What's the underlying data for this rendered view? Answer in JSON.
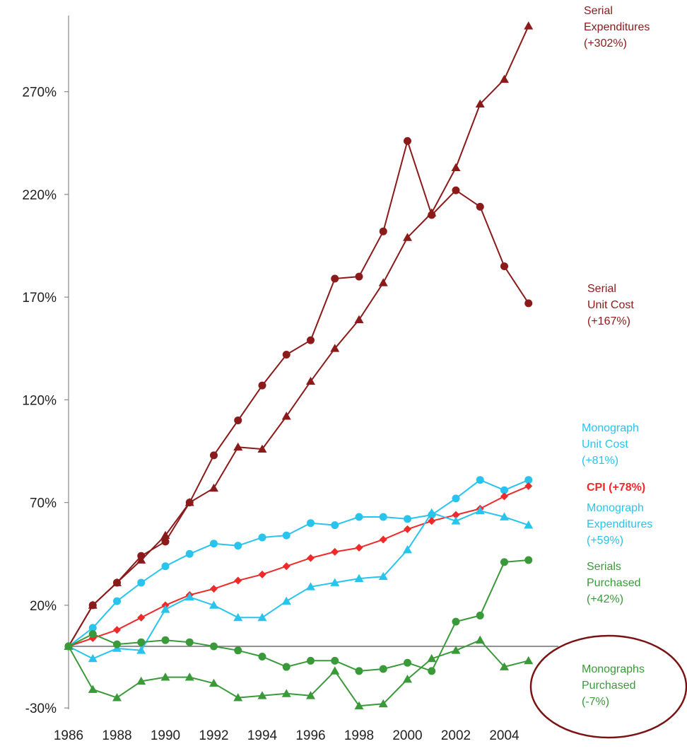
{
  "chart_data": {
    "type": "line",
    "title": "",
    "xlabel": "",
    "ylabel": "",
    "x": [
      1986,
      1987,
      1988,
      1989,
      1990,
      1991,
      1992,
      1993,
      1994,
      1995,
      1996,
      1997,
      1998,
      1999,
      2000,
      2001,
      2002,
      2003,
      2004,
      2005
    ],
    "xlim": [
      1986,
      2005.5
    ],
    "ylim": [
      -30,
      300
    ],
    "x_ticks": [
      "1986",
      "1988",
      "1990",
      "1992",
      "1994",
      "1996",
      "1998",
      "2000",
      "2002",
      "2004"
    ],
    "y_ticks": [
      "270%",
      "220%",
      "170%",
      "120%",
      "70%",
      "20%",
      "-30%"
    ],
    "y_tick_values": [
      270,
      220,
      170,
      120,
      70,
      20,
      -30
    ],
    "grid": false,
    "series": [
      {
        "label": [
          "Serial",
          "Expenditures",
          "(+302%)"
        ],
        "color": "#8b1a1a",
        "marker": "triangle",
        "values": [
          0,
          20,
          31,
          42,
          54,
          70,
          77,
          97,
          96,
          112,
          129,
          145,
          159,
          177,
          199,
          211,
          233,
          264,
          276,
          302
        ]
      },
      {
        "label": [
          "Serial",
          "Unit Cost",
          "(+167%)"
        ],
        "color": "#8b1a1a",
        "marker": "circle",
        "values": [
          0,
          20,
          31,
          44,
          51,
          70,
          93,
          110,
          127,
          142,
          149,
          179,
          180,
          202,
          246,
          210,
          222,
          214,
          185,
          167
        ]
      },
      {
        "label": [
          "Monograph",
          "Unit Cost",
          "(+81%)"
        ],
        "color": "#29c4ee",
        "marker": "circle",
        "values": [
          0,
          9,
          22,
          31,
          39,
          45,
          50,
          49,
          53,
          54,
          60,
          59,
          63,
          63,
          62,
          64,
          72,
          81,
          76,
          81
        ]
      },
      {
        "label": [
          "CPI (+78%)"
        ],
        "color": "#ee2a2a",
        "marker": "diamond",
        "bold": true,
        "values": [
          0,
          4,
          8,
          14,
          20,
          25,
          28,
          32,
          35,
          39,
          43,
          46,
          48,
          52,
          57,
          61,
          64,
          67,
          73,
          78
        ]
      },
      {
        "label": [
          "Monograph",
          "Expenditures",
          "(+59%)"
        ],
        "color": "#29c4ee",
        "marker": "triangle",
        "values": [
          0,
          -6,
          -1,
          -2,
          18,
          24,
          20,
          14,
          14,
          22,
          29,
          31,
          33,
          34,
          47,
          65,
          61,
          66,
          63,
          59
        ]
      },
      {
        "label": [
          "Serials",
          "Purchased",
          "(+42%)"
        ],
        "color": "#3a9a3a",
        "marker": "circle",
        "values": [
          0,
          6,
          1,
          2,
          3,
          2,
          0,
          -2,
          -5,
          -10,
          -7,
          -7,
          -12,
          -11,
          -8,
          -12,
          12,
          15,
          41,
          42
        ]
      },
      {
        "label": [
          "Monographs",
          "Purchased",
          "(-7%)"
        ],
        "color": "#3a9a3a",
        "marker": "triangle",
        "values": [
          0,
          -21,
          -25,
          -17,
          -15,
          -15,
          -18,
          -25,
          -24,
          -23,
          -24,
          -12,
          -29,
          -28,
          -16,
          -6,
          -2,
          3,
          -10,
          -7
        ]
      }
    ],
    "highlight": {
      "shape": "ellipse",
      "color": "#7a1414",
      "around": "Monographs Purchased (-7%)"
    }
  }
}
